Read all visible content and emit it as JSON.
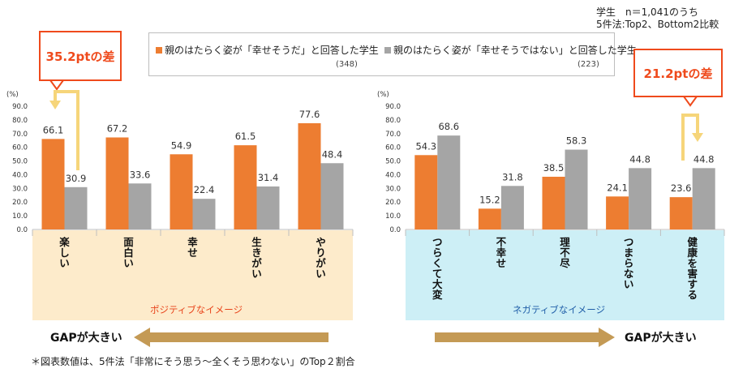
{
  "header": {
    "sample_line1": "学生　n＝1,041のうち",
    "sample_line2": "5件法:Top2、Bottom2比較"
  },
  "legend": {
    "series1_label": "親のはたらく姿が「幸せそうだ」と回答した学生",
    "series1_n": "(348)",
    "series2_label": "親のはたらく姿が「幸せそうではない」と回答した学生",
    "series2_n": "(223)"
  },
  "colors": {
    "orange": "#ED7D31",
    "gray": "#A5A5A5",
    "positive_bg": "#FDEBCB",
    "negative_bg": "#CDEFF6",
    "arrow": "#C49A55",
    "callout_border": "#EF4A1C",
    "bracket": "#F6D57A"
  },
  "callouts": {
    "left": "35.2ptの差",
    "right": "21.2ptの差"
  },
  "panels": {
    "positive_label": "ポジティブなイメージ",
    "negative_label": "ネガティブなイメージ",
    "gap_left": "GAPが大きい",
    "gap_right": "GAPが大きい"
  },
  "footnote": "＊図表数値は、5件法「非常にそう思う～全くそう思わない」のTop２割合",
  "chart_data": [
    {
      "type": "bar",
      "title": "ポジティブなイメージ",
      "unit": "(%)",
      "ylim": [
        0,
        90
      ],
      "yticks": [
        "0.0",
        "10.0",
        "20.0",
        "30.0",
        "40.0",
        "50.0",
        "60.0",
        "70.0",
        "80.0",
        "90.0"
      ],
      "categories": [
        "楽しい",
        "面白い",
        "幸せ",
        "生きがい",
        "やりがい"
      ],
      "series": [
        {
          "name": "幸せそうだ",
          "values": [
            66.1,
            67.2,
            54.9,
            61.5,
            77.6
          ]
        },
        {
          "name": "幸せそうではない",
          "values": [
            30.9,
            33.6,
            22.4,
            31.4,
            48.4
          ]
        }
      ]
    },
    {
      "type": "bar",
      "title": "ネガティブなイメージ",
      "unit": "(%)",
      "ylim": [
        0,
        90
      ],
      "yticks": [
        "0.0",
        "10.0",
        "20.0",
        "30.0",
        "40.0",
        "50.0",
        "60.0",
        "70.0",
        "80.0",
        "90.0"
      ],
      "categories": [
        "つらくて大変",
        "不幸せ",
        "理不尽",
        "つまらない",
        "健康を害する"
      ],
      "series": [
        {
          "name": "幸せそうだ",
          "values": [
            54.3,
            15.2,
            38.5,
            24.1,
            23.6
          ]
        },
        {
          "name": "幸せそうではない",
          "values": [
            68.6,
            31.8,
            58.3,
            44.8,
            44.8
          ]
        }
      ]
    }
  ]
}
